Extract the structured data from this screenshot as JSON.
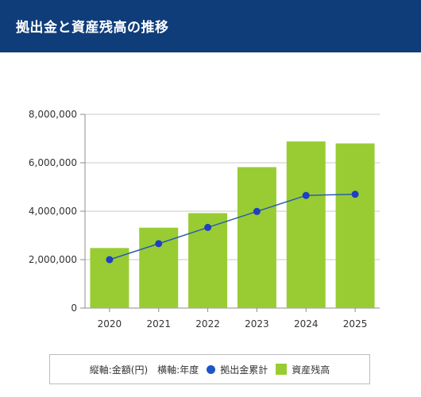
{
  "header": {
    "title": "拠出金と資産残高の推移"
  },
  "legend": {
    "axis_note": "縦軸:金額(円)　横軸:年度",
    "line_label": "拠出金累計",
    "bar_label": "資産残高"
  },
  "colors": {
    "header_bg": "#0f3d7a",
    "bar": "#99cc33",
    "line": "#2a5db0",
    "marker": "#1f3fc4"
  },
  "chart_data": {
    "type": "bar",
    "categories": [
      "2020",
      "2021",
      "2022",
      "2023",
      "2024",
      "2025"
    ],
    "series": [
      {
        "name": "資産残高",
        "type": "bar",
        "values": [
          2480000,
          3320000,
          3920000,
          5820000,
          6880000,
          6800000
        ]
      },
      {
        "name": "拠出金累計",
        "type": "line",
        "values": [
          2000000,
          2660000,
          3330000,
          3990000,
          4650000,
          4700000
        ]
      }
    ],
    "ylim": [
      0,
      8000000
    ],
    "yticks": [
      0,
      2000000,
      4000000,
      6000000,
      8000000
    ],
    "ytick_labels": [
      "0",
      "2,000,000",
      "4,000,000",
      "6,000,000",
      "8,000,000"
    ],
    "grid": true,
    "legend_position": "bottom"
  }
}
